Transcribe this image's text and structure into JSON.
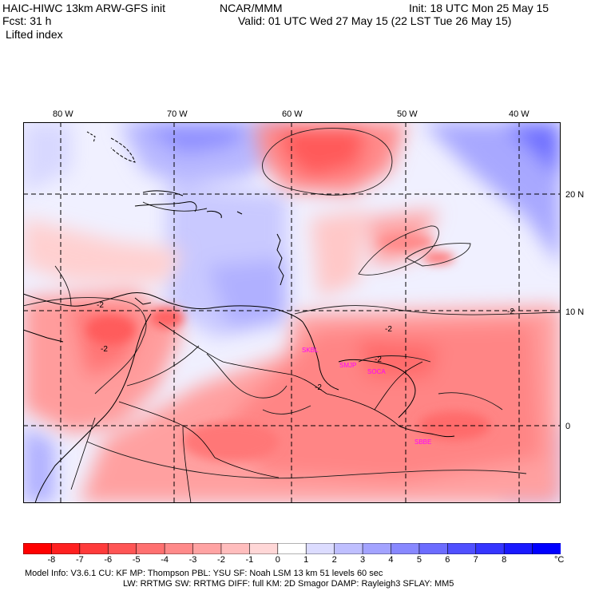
{
  "header": {
    "title_left": "HAIC-HIWC 13km ARW-GFS init",
    "org": "NCAR/MMM",
    "init": "Init: 18 UTC Mon 25 May 15",
    "fcst": "Fcst:   31 h",
    "valid": "Valid: 01 UTC Wed 27 May 15 (22 LST Tue 26 May 15)",
    "field": "Lifted index"
  },
  "map": {
    "lon_labels": [
      "80 W",
      "70 W",
      "60 W",
      "50 W",
      "40 W"
    ],
    "lat_labels": [
      "20 N",
      "10 N",
      "0"
    ],
    "contour_labels": [
      "-2",
      "-2",
      "-2",
      "-2",
      "-2",
      "-2"
    ],
    "stations": [
      "SKBL",
      "SMJP",
      "SOCA",
      "SBBE"
    ]
  },
  "colorbar": {
    "labels": [
      "-8",
      "-7",
      "-6",
      "-5",
      "-4",
      "-3",
      "-2",
      "-1",
      "0",
      "1",
      "2",
      "3",
      "4",
      "5",
      "6",
      "7",
      "8"
    ],
    "unit": "°C",
    "colors": [
      "#ff0000",
      "#ff2020",
      "#ff3b3b",
      "#ff5555",
      "#ff7070",
      "#ff8a8a",
      "#ffa3a3",
      "#ffbdbd",
      "#ffd7d7",
      "#ffffff",
      "#dcdcff",
      "#bfbfff",
      "#a3a3ff",
      "#8888ff",
      "#6c6cff",
      "#5050ff",
      "#3535ff",
      "#1a1aff",
      "#0000ff"
    ]
  },
  "footer": {
    "line1": "Model Info: V3.6.1     CU: KF       MP: Thompson       PBL: YSU         SF: Noah LSM      13 km    51 levels   60 sec",
    "line2": "LW: RRTMG     SW: RRTMG   DIFF: full     KM: 2D Smagor DAMP: Rayleigh3   SFLAY: MM5"
  }
}
